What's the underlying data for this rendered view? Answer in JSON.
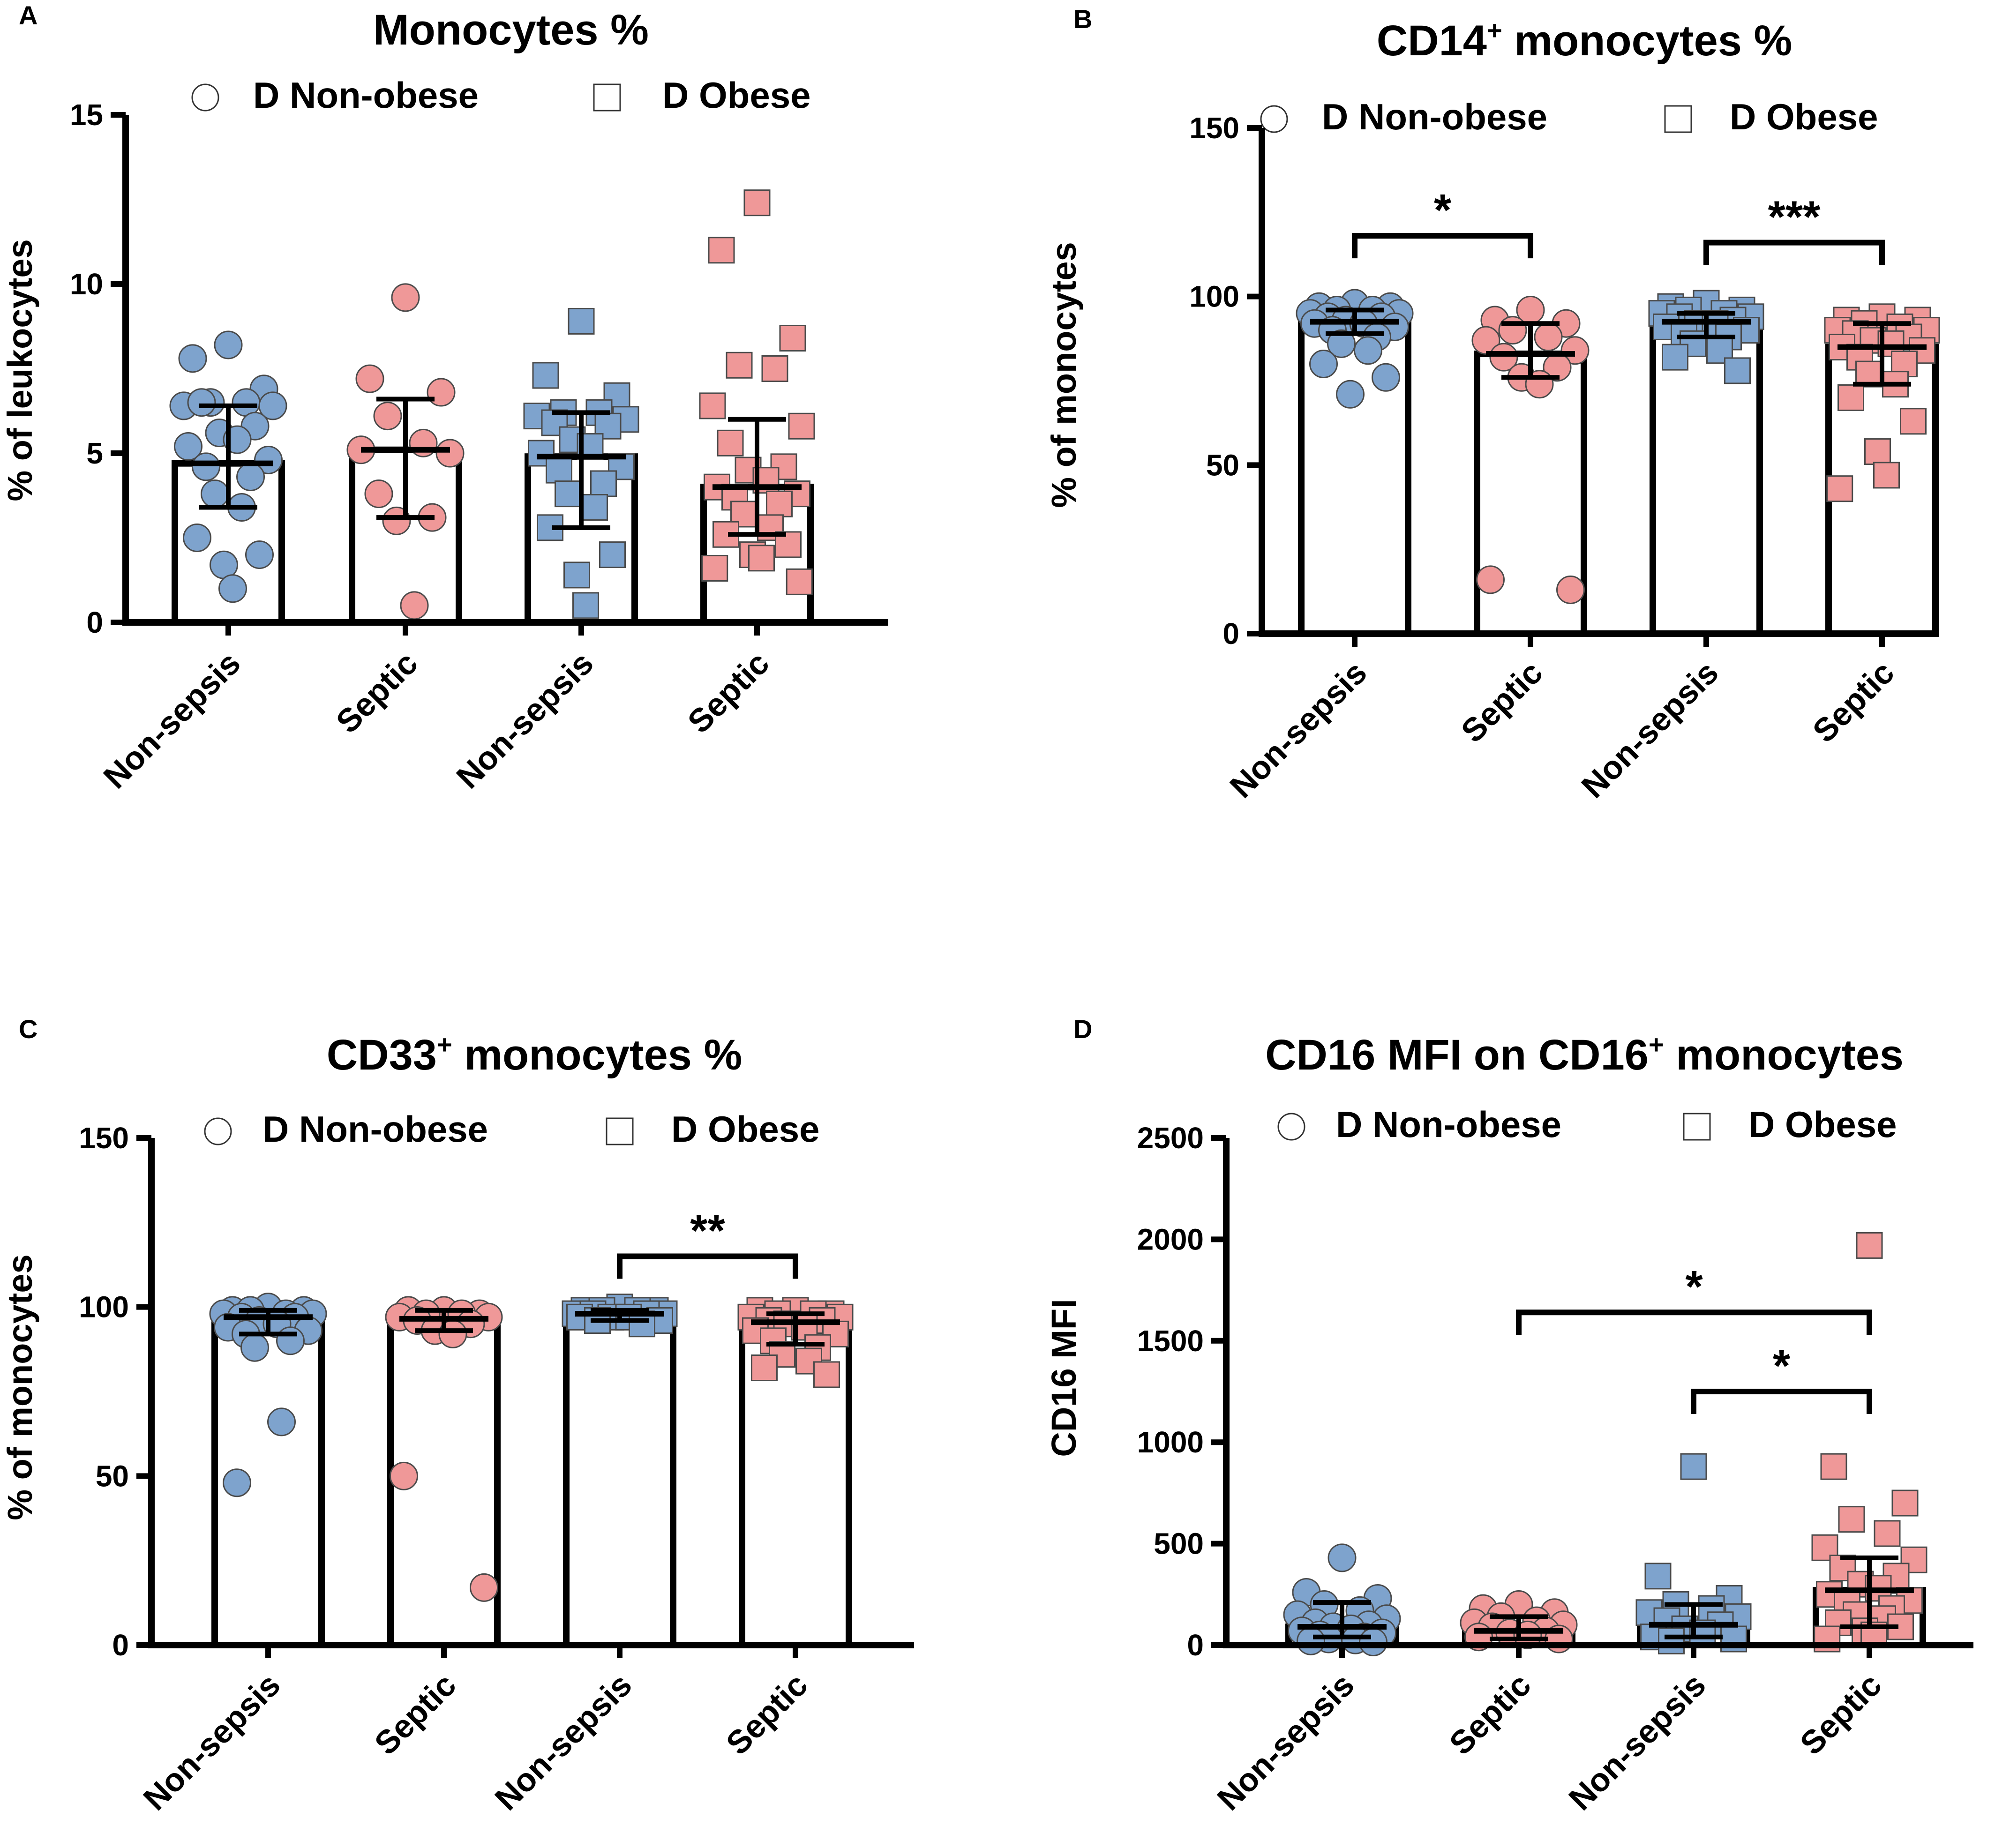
{
  "colors": {
    "non_obese": "#7ea3cd",
    "obese": "#ef9898",
    "marker_stroke": "#4a4a4a",
    "axis": "#000000"
  },
  "chart_data": [
    {
      "panel": "A",
      "type": "bar",
      "title": "Monocytes %",
      "title_sup": "",
      "ylabel": "% of leukocytes",
      "ylim": [
        0,
        15
      ],
      "yticks": [
        0,
        5,
        10,
        15
      ],
      "categories": [
        "Non-sepsis",
        "Septic",
        "Non-sepsis",
        "Septic"
      ],
      "legend": [
        "D Non-obese",
        "D Obese"
      ],
      "bars": [
        {
          "group": "D Non-obese",
          "category": "Non-sepsis",
          "mean": 4.7,
          "err_low": 3.4,
          "err_high": 6.4,
          "color": "non_obese",
          "marker": "circle",
          "points": [
            8.2,
            7.8,
            6.9,
            6.5,
            6.5,
            6.4,
            6.4,
            6.5,
            5.8,
            5.6,
            5.4,
            5.2,
            4.8,
            4.6,
            4.3,
            3.8,
            3.4,
            2.5,
            2.0,
            1.7,
            1.0
          ]
        },
        {
          "group": "D Non-obese",
          "category": "Septic",
          "mean": 5.1,
          "err_low": 3.1,
          "err_high": 6.6,
          "color": "obese",
          "marker": "circle",
          "points": [
            9.6,
            7.2,
            6.8,
            6.1,
            5.3,
            5.1,
            5.0,
            3.8,
            3.1,
            3.0,
            0.5
          ]
        },
        {
          "group": "D Obese",
          "category": "Non-sepsis",
          "mean": 4.9,
          "err_low": 2.8,
          "err_high": 6.2,
          "color": "non_obese",
          "marker": "square",
          "points": [
            8.9,
            7.3,
            6.7,
            6.2,
            6.2,
            6.1,
            6.0,
            5.9,
            5.8,
            5.4,
            5.2,
            5.0,
            4.6,
            4.5,
            4.1,
            3.8,
            3.4,
            2.8,
            2.0,
            1.4,
            0.5
          ]
        },
        {
          "group": "D Obese",
          "category": "Septic",
          "mean": 4.0,
          "err_low": 2.6,
          "err_high": 6.0,
          "color": "obese",
          "marker": "square",
          "points": [
            12.4,
            11.0,
            8.4,
            7.6,
            7.5,
            6.4,
            5.8,
            5.3,
            4.6,
            4.5,
            4.2,
            4.0,
            3.8,
            3.7,
            3.5,
            3.2,
            2.8,
            2.6,
            2.3,
            2.0,
            1.9,
            1.6,
            1.2
          ]
        }
      ],
      "significance": []
    },
    {
      "panel": "B",
      "type": "bar",
      "title": "CD14",
      "title_sup": "+",
      "title_rest": " monocytes %",
      "ylabel": "% of monocytes",
      "ylim": [
        0,
        150
      ],
      "yticks": [
        0,
        50,
        100,
        150
      ],
      "categories": [
        "Non-sepsis",
        "Septic",
        "Non-sepsis",
        "Septic"
      ],
      "legend": [
        "D Non-obese",
        "D Obese"
      ],
      "bars": [
        {
          "group": "D Non-obese",
          "category": "Non-sepsis",
          "mean": 92.5,
          "err_low": 89,
          "err_high": 96,
          "color": "non_obese",
          "marker": "circle",
          "points": [
            98,
            97,
            97,
            96,
            96,
            95,
            95,
            94,
            94,
            93,
            92,
            92,
            91,
            90,
            88,
            86,
            84,
            80,
            76,
            71
          ]
        },
        {
          "group": "D Non-obese",
          "category": "Septic",
          "mean": 83,
          "err_low": 76,
          "err_high": 92,
          "color": "obese",
          "marker": "circle",
          "points": [
            96,
            93,
            92,
            90,
            88,
            87,
            84,
            82,
            79,
            76,
            74,
            16,
            13
          ]
        },
        {
          "group": "D Obese",
          "category": "Non-sepsis",
          "mean": 92.5,
          "err_low": 88,
          "err_high": 95,
          "color": "non_obese",
          "marker": "square",
          "points": [
            98,
            97,
            96,
            96,
            95,
            95,
            94,
            94,
            93,
            92,
            92,
            91,
            90,
            89,
            88,
            86,
            84,
            82,
            78
          ]
        },
        {
          "group": "D Obese",
          "category": "Septic",
          "mean": 85,
          "err_low": 74,
          "err_high": 92,
          "color": "obese",
          "marker": "square",
          "points": [
            94,
            93,
            93,
            92,
            91,
            90,
            90,
            89,
            88,
            87,
            86,
            85,
            84,
            82,
            80,
            77,
            74,
            70,
            63,
            54,
            47,
            43
          ]
        }
      ],
      "significance": [
        {
          "from": 0,
          "to": 1,
          "label": "*",
          "y": 118
        },
        {
          "from": 2,
          "to": 3,
          "label": "***",
          "y": 116
        }
      ]
    },
    {
      "panel": "C",
      "type": "bar",
      "title": "CD33",
      "title_sup": "+",
      "title_rest": " monocytes %",
      "ylabel": "% of monocytes",
      "ylim": [
        0,
        150
      ],
      "yticks": [
        0,
        50,
        100,
        150
      ],
      "categories": [
        "Non-sepsis",
        "Septic",
        "Non-sepsis",
        "Septic"
      ],
      "legend": [
        "D Non-obese",
        "D Obese"
      ],
      "bars": [
        {
          "group": "D Non-obese",
          "category": "Non-sepsis",
          "mean": 97,
          "err_low": 92,
          "err_high": 99,
          "color": "non_obese",
          "marker": "circle",
          "points": [
            100,
            99,
            99,
            99,
            98,
            98,
            98,
            97,
            97,
            96,
            95,
            94,
            93,
            92,
            90,
            88,
            66,
            48
          ]
        },
        {
          "group": "D Non-obese",
          "category": "Septic",
          "mean": 96.5,
          "err_low": 93,
          "err_high": 99,
          "color": "obese",
          "marker": "circle",
          "points": [
            99,
            99,
            98,
            98,
            98,
            97,
            97,
            96,
            95,
            93,
            92,
            50,
            17
          ]
        },
        {
          "group": "D Obese",
          "category": "Non-sepsis",
          "mean": 98,
          "err_low": 96,
          "err_high": 99,
          "color": "non_obese",
          "marker": "square",
          "points": [
            100,
            99,
            99,
            99,
            99,
            98,
            98,
            98,
            98,
            97,
            97,
            97,
            96,
            96,
            95
          ]
        },
        {
          "group": "D Obese",
          "category": "Septic",
          "mean": 95.5,
          "err_low": 89,
          "err_high": 98,
          "color": "obese",
          "marker": "square",
          "points": [
            99,
            99,
            98,
            98,
            98,
            97,
            97,
            96,
            96,
            95,
            94,
            93,
            92,
            90,
            88,
            86,
            84,
            82,
            80
          ]
        }
      ],
      "significance": [
        {
          "from": 2,
          "to": 3,
          "label": "**",
          "y": 115
        }
      ]
    },
    {
      "panel": "D",
      "type": "bar",
      "title": "CD16 MFI on CD16",
      "title_sup": "+",
      "title_rest": "  monocytes",
      "ylabel": "CD16 MFI",
      "ylim": [
        0,
        2500
      ],
      "yticks": [
        0,
        500,
        1000,
        1500,
        2000,
        2500
      ],
      "categories": [
        "Non-sepsis",
        "Septic",
        "Non-sepsis",
        "Septic"
      ],
      "legend": [
        "D Non-obese",
        "D Obese"
      ],
      "bars": [
        {
          "group": "D Non-obese",
          "category": "Non-sepsis",
          "mean": 90,
          "err_low": 40,
          "err_high": 210,
          "color": "non_obese",
          "marker": "circle",
          "points": [
            430,
            260,
            230,
            200,
            170,
            150,
            130,
            110,
            100,
            90,
            80,
            70,
            60,
            50,
            40,
            30,
            25,
            20,
            15
          ]
        },
        {
          "group": "D Non-obese",
          "category": "Septic",
          "mean": 70,
          "err_low": 30,
          "err_high": 140,
          "color": "obese",
          "marker": "circle",
          "points": [
            200,
            180,
            160,
            140,
            120,
            110,
            100,
            90,
            70,
            60,
            50,
            40,
            30
          ]
        },
        {
          "group": "D Obese",
          "category": "Non-sepsis",
          "mean": 100,
          "err_low": 40,
          "err_high": 200,
          "color": "non_obese",
          "marker": "square",
          "points": [
            880,
            340,
            230,
            200,
            180,
            160,
            140,
            120,
            100,
            80,
            60,
            40,
            30,
            20
          ]
        },
        {
          "group": "D Obese",
          "category": "Septic",
          "mean": 270,
          "err_low": 90,
          "err_high": 430,
          "color": "obese",
          "marker": "square",
          "points": [
            1970,
            880,
            700,
            620,
            550,
            480,
            420,
            380,
            340,
            300,
            280,
            250,
            220,
            200,
            180,
            150,
            130,
            110,
            90,
            70,
            50,
            30
          ]
        }
      ],
      "significance": [
        {
          "from": 1,
          "to": 3,
          "label": "*",
          "y": 1640
        },
        {
          "from": 2,
          "to": 3,
          "label": "*",
          "y": 1250
        }
      ]
    }
  ]
}
